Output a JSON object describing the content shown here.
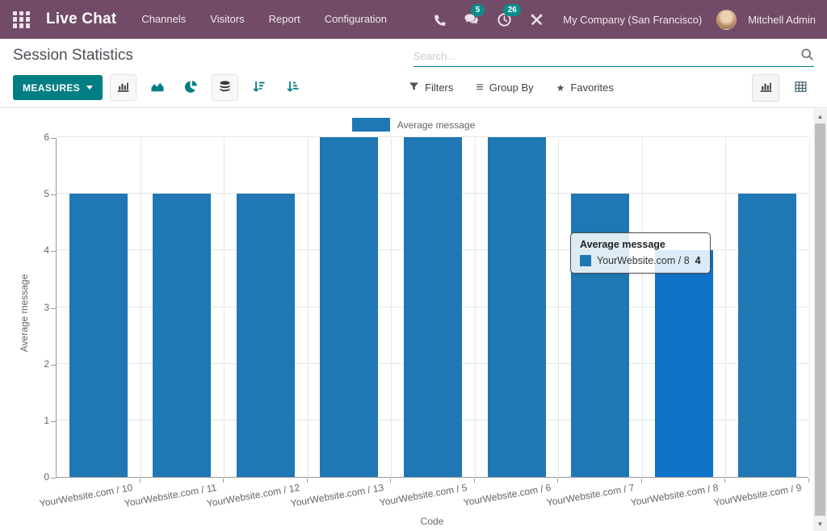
{
  "colors": {
    "navbar_bg": "#714B67",
    "accent": "#017E84",
    "badge_bg": "#0C8E8D"
  },
  "icons": {
    "favorites_star": "★",
    "group_by_glyph": "≡",
    "scroll_up": "▲",
    "scroll_down": "▼"
  },
  "navbar": {
    "app_name": "Live Chat",
    "menu_items": [
      "Channels",
      "Visitors",
      "Report",
      "Configuration"
    ],
    "systray": {
      "messages_badge": "5",
      "activities_badge": "26"
    },
    "company": "My Company (San Francisco)",
    "user": "Mitchell Admin"
  },
  "control_panel": {
    "title": "Session Statistics",
    "search_placeholder": "Search...",
    "search_value": "",
    "measures_label": "MEASURES",
    "filters_label": "Filters",
    "group_by_label": "Group By",
    "favorites_label": "Favorites"
  },
  "chart_data": {
    "type": "bar",
    "title": "",
    "categories": [
      "YourWebsite.com / 10",
      "YourWebsite.com / 11",
      "YourWebsite.com / 12",
      "YourWebsite.com / 13",
      "YourWebsite.com / 5",
      "YourWebsite.com / 6",
      "YourWebsite.com / 7",
      "YourWebsite.com / 8",
      "YourWebsite.com / 9"
    ],
    "series": [
      {
        "name": "Average message",
        "values": [
          5,
          5,
          5,
          6,
          6,
          6,
          5,
          4,
          5
        ]
      }
    ],
    "xlabel": "Code",
    "ylabel": "Average message",
    "ylim": [
      0,
      6
    ],
    "yticks": [
      0,
      1,
      2,
      3,
      4,
      5,
      6
    ],
    "grid": true,
    "legend_position": "top-center",
    "hovered_index": 7,
    "colors": {
      "bar": "#1f77b4",
      "bar_hover": "#0d72c8",
      "grid": "#e7e7e7",
      "axis": "#9a9a9a",
      "text": "#666666"
    }
  },
  "tooltip": {
    "title": "Average message",
    "item_label": "YourWebsite.com / 8",
    "item_value": "4"
  }
}
